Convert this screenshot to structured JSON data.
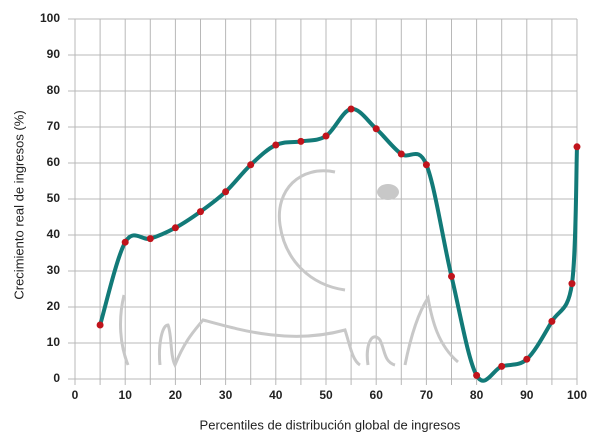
{
  "chart_data": {
    "type": "line",
    "x_label": "Percentiles de distribución global de ingresos",
    "y_label": "Crecimiento real de ingresos (%)",
    "x": [
      5,
      10,
      15,
      20,
      25,
      30,
      35,
      40,
      45,
      50,
      55,
      60,
      65,
      70,
      75,
      80,
      85,
      90,
      95,
      99,
      100
    ],
    "series": [
      {
        "color": "#127a78",
        "marker_color": "#c0141c",
        "values": [
          15,
          38,
          39,
          42,
          46.5,
          52,
          59.5,
          65,
          66,
          67.5,
          75,
          69.5,
          62.5,
          59.5,
          28.5,
          1,
          3.5,
          5.5,
          16,
          26.5,
          64.5
        ]
      }
    ],
    "xlim": [
      0,
      100
    ],
    "xticks": [
      0,
      10,
      20,
      30,
      40,
      50,
      60,
      70,
      80,
      90,
      100
    ],
    "x_minor_grid": [
      5,
      15,
      25,
      35,
      45,
      55,
      65,
      75,
      85,
      95
    ],
    "ylim": [
      0,
      100
    ],
    "yticks": [
      0,
      10,
      20,
      30,
      40,
      50,
      60,
      70,
      80,
      90,
      100
    ],
    "grid": true
  }
}
